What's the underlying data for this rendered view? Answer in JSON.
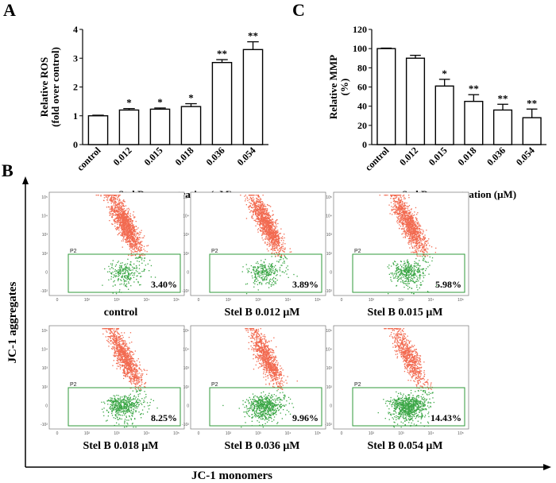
{
  "panels": {
    "a": "A",
    "b": "B",
    "c": "C"
  },
  "chart_data": [
    {
      "type": "bar",
      "panel": "A",
      "categories": [
        "control",
        "0.012",
        "0.015",
        "0.018",
        "0.036",
        "0.054"
      ],
      "values": [
        1.0,
        1.2,
        1.23,
        1.32,
        2.85,
        3.3
      ],
      "errors": [
        0.02,
        0.05,
        0.04,
        0.1,
        0.1,
        0.27
      ],
      "significance": [
        "",
        "*",
        "*",
        "*",
        "**",
        "**"
      ],
      "ylabel_line1": "Relative ROS",
      "ylabel_line2": "(fold over control)",
      "xlabel": "Stel B concentration (μM)",
      "ylim": [
        0,
        4
      ],
      "yticks": [
        "0",
        "1",
        "2",
        "3",
        "4"
      ]
    },
    {
      "type": "bar",
      "panel": "C",
      "categories": [
        "control",
        "0.012",
        "0.015",
        "0.018",
        "0.036",
        "0.054"
      ],
      "values": [
        100,
        90,
        61,
        45,
        36,
        28
      ],
      "errors": [
        0.5,
        3,
        7,
        7,
        6,
        9
      ],
      "significance": [
        "",
        "",
        "*",
        "**",
        "**",
        "**"
      ],
      "ylabel_line1": "Relative MMP",
      "ylabel_line2": "(%)",
      "xlabel": "Stel B concentration (μM)",
      "ylim": [
        0,
        120
      ],
      "yticks": [
        "0",
        "20",
        "40",
        "60",
        "80",
        "100",
        "120"
      ]
    },
    {
      "type": "scatter",
      "panel": "B",
      "ylabel": "JC-1 aggregates",
      "xlabel": "JC-1 monomers",
      "gate_label": "P2",
      "axis_ticks_x": [
        "0",
        "10²",
        "10³",
        "10⁴",
        "10⁵"
      ],
      "axis_ticks_y": [
        "-10²",
        "0",
        "10²",
        "10³",
        "10⁴",
        "10⁵"
      ],
      "plots": [
        {
          "label": "control",
          "percent": "3.40%"
        },
        {
          "label": "Stel B 0.012 μM",
          "percent": "3.89%"
        },
        {
          "label": "Stel B 0.015 μM",
          "percent": "5.98%"
        },
        {
          "label": "Stel B 0.018 μM",
          "percent": "8.25%"
        },
        {
          "label": "Stel B 0.036 μM",
          "percent": "9.96%"
        },
        {
          "label": "Stel B 0.054 μM",
          "percent": "14.43%"
        }
      ]
    }
  ],
  "colors": {
    "aggregate": "#f26a50",
    "monomer": "#3aa645",
    "gate": "#2f9a3a"
  }
}
